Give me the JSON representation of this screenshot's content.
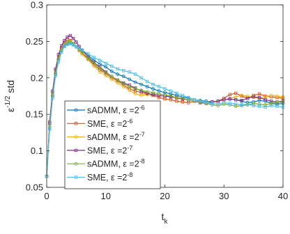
{
  "chart_data": {
    "type": "line",
    "title": "",
    "xlabel": "t",
    "xlabel_sub": "k",
    "ylabel": "ε",
    "ylabel_sup": "-1/2",
    "ylabel_rest": " std",
    "xlim": [
      0,
      40
    ],
    "ylim": [
      0.05,
      0.3
    ],
    "xticks": [
      0,
      10,
      20,
      30,
      40
    ],
    "xtick_labels": [
      "0",
      "10",
      "20",
      "30",
      "40"
    ],
    "yticks": [
      0.05,
      0.1,
      0.15,
      0.2,
      0.25,
      0.3
    ],
    "ytick_labels": [
      "0.05",
      "0.1",
      "0.15",
      "0.2",
      "0.25",
      "0.3"
    ],
    "grid": false,
    "legend_position": "bottom-left",
    "series": [
      {
        "name": "sADMM, ε =2^-6",
        "legend_main": "sADMM, ε =2",
        "legend_sup": "-6",
        "color": "#0072BD",
        "marker": "circle",
        "x": [
          0,
          0.5,
          1,
          1.5,
          2,
          2.5,
          3,
          3.5,
          4,
          4.5,
          5,
          5.5,
          6,
          7,
          8,
          9,
          10,
          11,
          12,
          13,
          14,
          15,
          16,
          17,
          18,
          19,
          20,
          21,
          22,
          23,
          24,
          25,
          26,
          27,
          28,
          29,
          30,
          31,
          32,
          33,
          34,
          35,
          36,
          37,
          38,
          39,
          40
        ],
        "y": [
          0.065,
          0.13,
          0.175,
          0.205,
          0.225,
          0.237,
          0.244,
          0.247,
          0.248,
          0.246,
          0.243,
          0.24,
          0.237,
          0.231,
          0.224,
          0.219,
          0.215,
          0.209,
          0.205,
          0.202,
          0.198,
          0.194,
          0.191,
          0.188,
          0.185,
          0.182,
          0.18,
          0.178,
          0.176,
          0.174,
          0.172,
          0.17,
          0.169,
          0.168,
          0.167,
          0.168,
          0.17,
          0.171,
          0.17,
          0.168,
          0.166,
          0.167,
          0.169,
          0.168,
          0.165,
          0.164,
          0.165
        ]
      },
      {
        "name": "SME, ε =2^-6",
        "legend_main": "SME, ε =2",
        "legend_sup": "-6",
        "color": "#D95319",
        "marker": "square",
        "x": [
          0,
          0.5,
          1,
          1.5,
          2,
          2.5,
          3,
          3.5,
          4,
          4.5,
          5,
          5.5,
          6,
          7,
          8,
          9,
          10,
          11,
          12,
          13,
          14,
          15,
          16,
          17,
          18,
          19,
          20,
          21,
          22,
          23,
          24,
          25,
          26,
          27,
          28,
          29,
          30,
          31,
          32,
          33,
          34,
          35,
          36,
          37,
          38,
          39,
          40
        ],
        "y": [
          0.065,
          0.14,
          0.18,
          0.21,
          0.228,
          0.24,
          0.248,
          0.252,
          0.251,
          0.247,
          0.243,
          0.238,
          0.234,
          0.226,
          0.218,
          0.211,
          0.206,
          0.2,
          0.196,
          0.19,
          0.185,
          0.182,
          0.18,
          0.178,
          0.176,
          0.173,
          0.171,
          0.17,
          0.168,
          0.167,
          0.166,
          0.168,
          0.167,
          0.165,
          0.167,
          0.168,
          0.172,
          0.177,
          0.179,
          0.175,
          0.172,
          0.176,
          0.178,
          0.175,
          0.174,
          0.173,
          0.172
        ]
      },
      {
        "name": "sADMM, ε =2^-7",
        "legend_main": "sADMM, ε =2",
        "legend_sup": "-7",
        "color": "#EDB120",
        "marker": "circle",
        "x": [
          0,
          0.5,
          1,
          1.5,
          2,
          2.5,
          3,
          3.5,
          4,
          4.5,
          5,
          5.5,
          6,
          7,
          8,
          9,
          10,
          11,
          12,
          13,
          14,
          15,
          16,
          17,
          18,
          19,
          20,
          21,
          22,
          23,
          24,
          25,
          26,
          27,
          28,
          29,
          30,
          31,
          32,
          33,
          34,
          35,
          36,
          37,
          38,
          39,
          40
        ],
        "y": [
          0.065,
          0.135,
          0.178,
          0.208,
          0.228,
          0.24,
          0.247,
          0.25,
          0.249,
          0.246,
          0.242,
          0.237,
          0.232,
          0.225,
          0.216,
          0.208,
          0.203,
          0.198,
          0.193,
          0.188,
          0.183,
          0.178,
          0.176,
          0.177,
          0.178,
          0.176,
          0.175,
          0.174,
          0.172,
          0.171,
          0.17,
          0.168,
          0.166,
          0.165,
          0.166,
          0.168,
          0.17,
          0.172,
          0.174,
          0.176,
          0.175,
          0.173,
          0.172,
          0.174,
          0.176,
          0.175,
          0.174
        ]
      },
      {
        "name": "SME, ε =2^-7",
        "legend_main": "SME, ε =2",
        "legend_sup": "-7",
        "color": "#7E2F8E",
        "marker": "square",
        "x": [
          0,
          0.5,
          1,
          1.5,
          2,
          2.5,
          3,
          3.5,
          4,
          4.5,
          5,
          5.5,
          6,
          7,
          8,
          9,
          10,
          11,
          12,
          13,
          14,
          15,
          16,
          17,
          18,
          19,
          20,
          21,
          22,
          23,
          24,
          25,
          26,
          27,
          28,
          29,
          30,
          31,
          32,
          33,
          34,
          35,
          36,
          37,
          38,
          39,
          40
        ],
        "y": [
          0.065,
          0.138,
          0.182,
          0.212,
          0.232,
          0.244,
          0.251,
          0.256,
          0.258,
          0.254,
          0.249,
          0.243,
          0.238,
          0.229,
          0.221,
          0.215,
          0.208,
          0.202,
          0.197,
          0.193,
          0.19,
          0.186,
          0.182,
          0.179,
          0.177,
          0.176,
          0.175,
          0.174,
          0.173,
          0.171,
          0.17,
          0.168,
          0.166,
          0.165,
          0.167,
          0.168,
          0.17,
          0.171,
          0.17,
          0.169,
          0.172,
          0.174,
          0.173,
          0.17,
          0.168,
          0.167,
          0.168
        ]
      },
      {
        "name": "sADMM, ε =2^-8",
        "legend_main": "sADMM, ε =2",
        "legend_sup": "-8",
        "color": "#77AC30",
        "marker": "circle",
        "x": [
          0,
          0.5,
          1,
          1.5,
          2,
          2.5,
          3,
          3.5,
          4,
          4.5,
          5,
          5.5,
          6,
          7,
          8,
          9,
          10,
          11,
          12,
          13,
          14,
          15,
          16,
          17,
          18,
          19,
          20,
          21,
          22,
          23,
          24,
          25,
          26,
          27,
          28,
          29,
          30,
          31,
          32,
          33,
          34,
          35,
          36,
          37,
          38,
          39,
          40
        ],
        "y": [
          0.065,
          0.132,
          0.176,
          0.206,
          0.226,
          0.238,
          0.245,
          0.249,
          0.25,
          0.247,
          0.243,
          0.239,
          0.235,
          0.227,
          0.22,
          0.213,
          0.207,
          0.202,
          0.197,
          0.192,
          0.188,
          0.185,
          0.183,
          0.181,
          0.18,
          0.178,
          0.177,
          0.175,
          0.173,
          0.172,
          0.17,
          0.168,
          0.167,
          0.165,
          0.163,
          0.162,
          0.164,
          0.163,
          0.161,
          0.162,
          0.163,
          0.165,
          0.164,
          0.163,
          0.165,
          0.167,
          0.166
        ]
      },
      {
        "name": "SME, ε =2^-8",
        "legend_main": "SME, ε =2",
        "legend_sup": "-8",
        "color": "#4DBEEE",
        "marker": "square",
        "x": [
          0,
          0.5,
          1,
          1.5,
          2,
          2.5,
          3,
          3.5,
          4,
          4.5,
          5,
          5.5,
          6,
          7,
          8,
          9,
          10,
          11,
          12,
          13,
          14,
          15,
          16,
          17,
          18,
          19,
          20,
          21,
          22,
          23,
          24,
          25,
          26,
          27,
          28,
          29,
          30,
          31,
          32,
          33,
          34,
          35,
          36,
          37,
          38,
          39,
          40
        ],
        "y": [
          0.065,
          0.13,
          0.172,
          0.203,
          0.222,
          0.235,
          0.243,
          0.246,
          0.247,
          0.245,
          0.243,
          0.24,
          0.238,
          0.233,
          0.228,
          0.224,
          0.22,
          0.216,
          0.212,
          0.21,
          0.208,
          0.205,
          0.2,
          0.195,
          0.191,
          0.188,
          0.185,
          0.182,
          0.179,
          0.176,
          0.173,
          0.17,
          0.168,
          0.166,
          0.165,
          0.164,
          0.166,
          0.165,
          0.164,
          0.163,
          0.164,
          0.162,
          0.161,
          0.16,
          0.162,
          0.161,
          0.16
        ]
      }
    ]
  }
}
